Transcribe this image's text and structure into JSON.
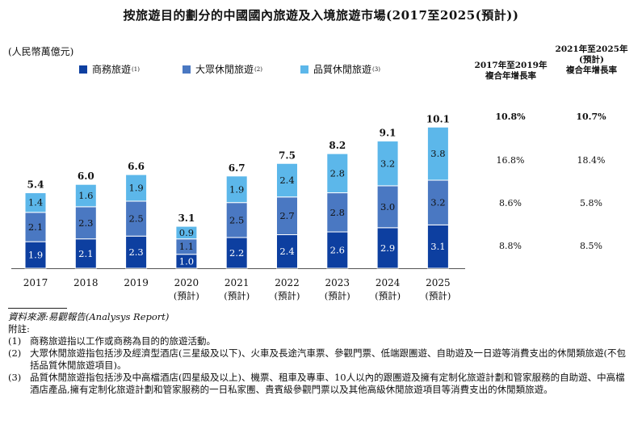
{
  "title": "按旅遊目的劃分的中國國內旅遊及入境旅遊市場(2017至2025(預計))",
  "unit": "(人民幣萬億元)",
  "colors": {
    "business": "#0d3fa0",
    "mass": "#4a78c2",
    "quality": "#5cb7ea"
  },
  "legend": [
    {
      "label": "商務旅遊",
      "note": "(1)",
      "color": "#0d3fa0"
    },
    {
      "label": "大眾休閒旅遊",
      "note": "(2)",
      "color": "#4a78c2"
    },
    {
      "label": "品質休閒旅遊",
      "note": "(3)",
      "color": "#5cb7ea"
    }
  ],
  "cagr_headers": {
    "col1": [
      "2017年至2019年",
      "複合年增長率"
    ],
    "col2": [
      "2021年至2025年",
      "(預計)",
      "複合年增長率"
    ]
  },
  "cagr_rows": [
    {
      "col1": "10.8%",
      "col2": "10.7%",
      "bold": true
    },
    {
      "col1": "16.8%",
      "col2": "18.4%",
      "bold": false
    },
    {
      "col1": "8.6%",
      "col2": "5.8%",
      "bold": false
    },
    {
      "col1": "8.8%",
      "col2": "8.5%",
      "bold": false
    }
  ],
  "chart_data": {
    "type": "bar",
    "stacked": true,
    "categories": [
      "2017",
      "2018",
      "2019",
      "2020",
      "2021",
      "2022",
      "2023",
      "2024",
      "2025"
    ],
    "category_sublabels": [
      "",
      "",
      "",
      "(預計)",
      "(預計)",
      "(預計)",
      "(預計)",
      "(預計)",
      "(預計)"
    ],
    "series": [
      {
        "name": "商務旅遊",
        "values": [
          1.9,
          2.1,
          2.3,
          1.0,
          2.2,
          2.4,
          2.6,
          2.9,
          3.1
        ]
      },
      {
        "name": "大眾休閒旅遊",
        "values": [
          2.1,
          2.3,
          2.5,
          1.1,
          2.5,
          2.7,
          2.8,
          3.0,
          3.2
        ]
      },
      {
        "name": "品質休閒旅遊",
        "values": [
          1.4,
          1.6,
          1.9,
          0.9,
          1.9,
          2.4,
          2.8,
          3.2,
          3.8
        ]
      }
    ],
    "totals": [
      "5.4",
      "6.0",
      "6.6",
      "3.1",
      "6.7",
      "7.5",
      "8.2",
      "9.1",
      "10.1"
    ],
    "segment_labels": [
      [
        "1.9",
        "2.1",
        "2.3",
        "1.0",
        "2.2",
        "2.4",
        "2.6",
        "2.9",
        "3.1"
      ],
      [
        "2.1",
        "2.3",
        "2.5",
        "1.1",
        "2.5",
        "2.7",
        "2.8",
        "3.0",
        "3.2"
      ],
      [
        "1.4",
        "1.6",
        "1.9",
        "0.9",
        "1.9",
        "2.4",
        "2.8",
        "3.2",
        "3.8"
      ]
    ],
    "xlabel": "",
    "ylabel": "",
    "ylim": [
      0,
      10.1
    ],
    "grid": false,
    "legend_position": "top"
  },
  "footer": {
    "source": "資料來源:易觀報告(Analysys Report)",
    "notes_label": "附註:",
    "notes": [
      {
        "num": "(1)",
        "text": "商務旅遊指以工作或商務為目的的旅遊活動。"
      },
      {
        "num": "(2)",
        "text": "大眾休閒旅遊指包括涉及經濟型酒店(三星級及以下)、火車及長途汽車票、參觀門票、低端跟團遊、自助遊及一日遊等消費支出的休閒類旅遊(不包括品質休閒旅遊項目)。"
      },
      {
        "num": "(3)",
        "text": "品質休閒旅遊指包括涉及中高檔酒店(四星級及以上)、機票、租車及專車、10人以內的跟團遊及擁有定制化旅遊計劃和管家服務的自助遊、中高檔酒店產品,擁有定制化旅遊計劃和管家服務的一日私家團、貴賓級參觀門票以及其他高級休閒旅遊項目等消費支出的休閒類旅遊。"
      }
    ]
  }
}
